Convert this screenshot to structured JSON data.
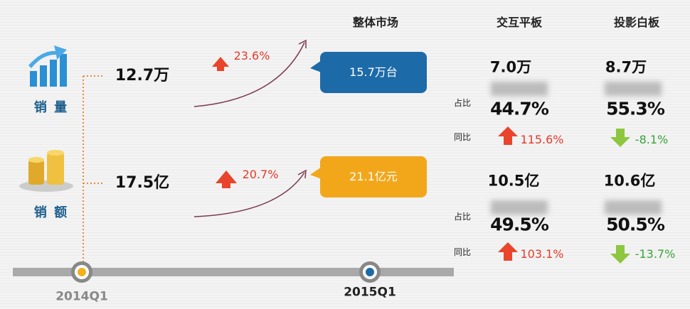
{
  "headers": {
    "market": "整体市场",
    "interactive": "交互平板",
    "projection": "投影白板"
  },
  "labels": {
    "share": "占比",
    "yoy": "同比"
  },
  "rows": [
    {
      "label": "销 量",
      "base": "12.7万",
      "growth": "23.6%",
      "market": "15.7万台",
      "interactive": {
        "value": "7.0万",
        "share": "44.7%",
        "yoy": "115.6%"
      },
      "projection": {
        "value": "8.7万",
        "share": "55.3%",
        "yoy": "-8.1%"
      }
    },
    {
      "label": "销 额",
      "base": "17.5亿",
      "growth": "20.7%",
      "market": "21.1亿元",
      "interactive": {
        "value": "10.5亿",
        "share": "49.5%",
        "yoy": "103.1%"
      },
      "projection": {
        "value": "10.6亿",
        "share": "50.5%",
        "yoy": "-13.7%"
      }
    }
  ],
  "timeline": [
    "2014Q1",
    "2015Q1"
  ]
}
